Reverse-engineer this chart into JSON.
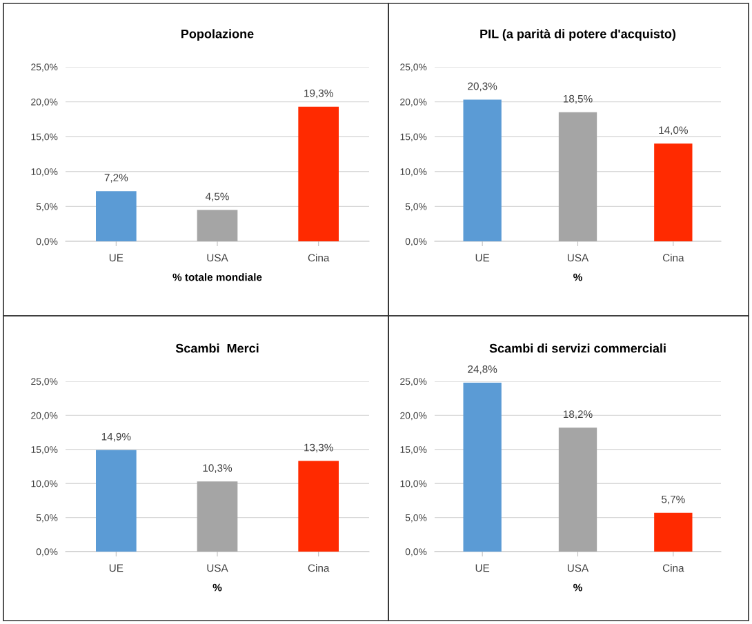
{
  "chart_data": [
    {
      "type": "bar",
      "title": "Popolazione",
      "xlabel": "% totale mondiale",
      "categories": [
        "UE",
        "USA",
        "Cina"
      ],
      "values": [
        7.2,
        4.5,
        19.3
      ],
      "colors": [
        "#5b9bd5",
        "#a5a5a5",
        "#ff2a00"
      ],
      "value_labels": [
        "7,2%",
        "4,5%",
        "19,3%"
      ],
      "ylim": [
        0,
        25
      ],
      "yticks": [
        {
          "value": 0,
          "label": "0,0%"
        },
        {
          "value": 5,
          "label": "5,0%"
        },
        {
          "value": 10,
          "label": "10,0%"
        },
        {
          "value": 15,
          "label": "15,0%"
        },
        {
          "value": 20,
          "label": "20,0%"
        },
        {
          "value": 25,
          "label": "25,0%"
        }
      ],
      "grid": "y",
      "legend": false
    },
    {
      "type": "bar",
      "title": "PIL (a parità di potere d'acquisto)",
      "xlabel": "%",
      "categories": [
        "UE",
        "USA",
        "Cina"
      ],
      "values": [
        20.3,
        18.5,
        14.0
      ],
      "colors": [
        "#5b9bd5",
        "#a5a5a5",
        "#ff2a00"
      ],
      "value_labels": [
        "20,3%",
        "18,5%",
        "14,0%"
      ],
      "ylim": [
        0,
        25
      ],
      "yticks": [
        {
          "value": 0,
          "label": "0,0%"
        },
        {
          "value": 5,
          "label": "5,0%"
        },
        {
          "value": 10,
          "label": "10,0%"
        },
        {
          "value": 15,
          "label": "15,0%"
        },
        {
          "value": 20,
          "label": "20,0%"
        },
        {
          "value": 25,
          "label": "25,0%"
        }
      ],
      "grid": "y",
      "legend": false
    },
    {
      "type": "bar",
      "title": "Scambi  Merci",
      "xlabel": "%",
      "categories": [
        "UE",
        "USA",
        "Cina"
      ],
      "values": [
        14.9,
        10.3,
        13.3
      ],
      "colors": [
        "#5b9bd5",
        "#a5a5a5",
        "#ff2a00"
      ],
      "value_labels": [
        "14,9%",
        "10,3%",
        "13,3%"
      ],
      "ylim": [
        0,
        25
      ],
      "yticks": [
        {
          "value": 0,
          "label": "0,0%"
        },
        {
          "value": 5,
          "label": "5,0%"
        },
        {
          "value": 10,
          "label": "10,0%"
        },
        {
          "value": 15,
          "label": "15,0%"
        },
        {
          "value": 20,
          "label": "20,0%"
        },
        {
          "value": 25,
          "label": "25,0%"
        }
      ],
      "grid": "y",
      "legend": false
    },
    {
      "type": "bar",
      "title": "Scambi di servizi commerciali",
      "xlabel": "%",
      "categories": [
        "UE",
        "USA",
        "Cina"
      ],
      "values": [
        24.8,
        18.2,
        5.7
      ],
      "colors": [
        "#5b9bd5",
        "#a5a5a5",
        "#ff2a00"
      ],
      "value_labels": [
        "24,8%",
        "18,2%",
        "5,7%"
      ],
      "ylim": [
        0,
        25
      ],
      "yticks": [
        {
          "value": 0,
          "label": "0,0%"
        },
        {
          "value": 5,
          "label": "5,0%"
        },
        {
          "value": 10,
          "label": "10,0%"
        },
        {
          "value": 15,
          "label": "15,0%"
        },
        {
          "value": 20,
          "label": "20,0%"
        },
        {
          "value": 25,
          "label": "25,0%"
        }
      ],
      "grid": "y",
      "legend": false
    }
  ]
}
